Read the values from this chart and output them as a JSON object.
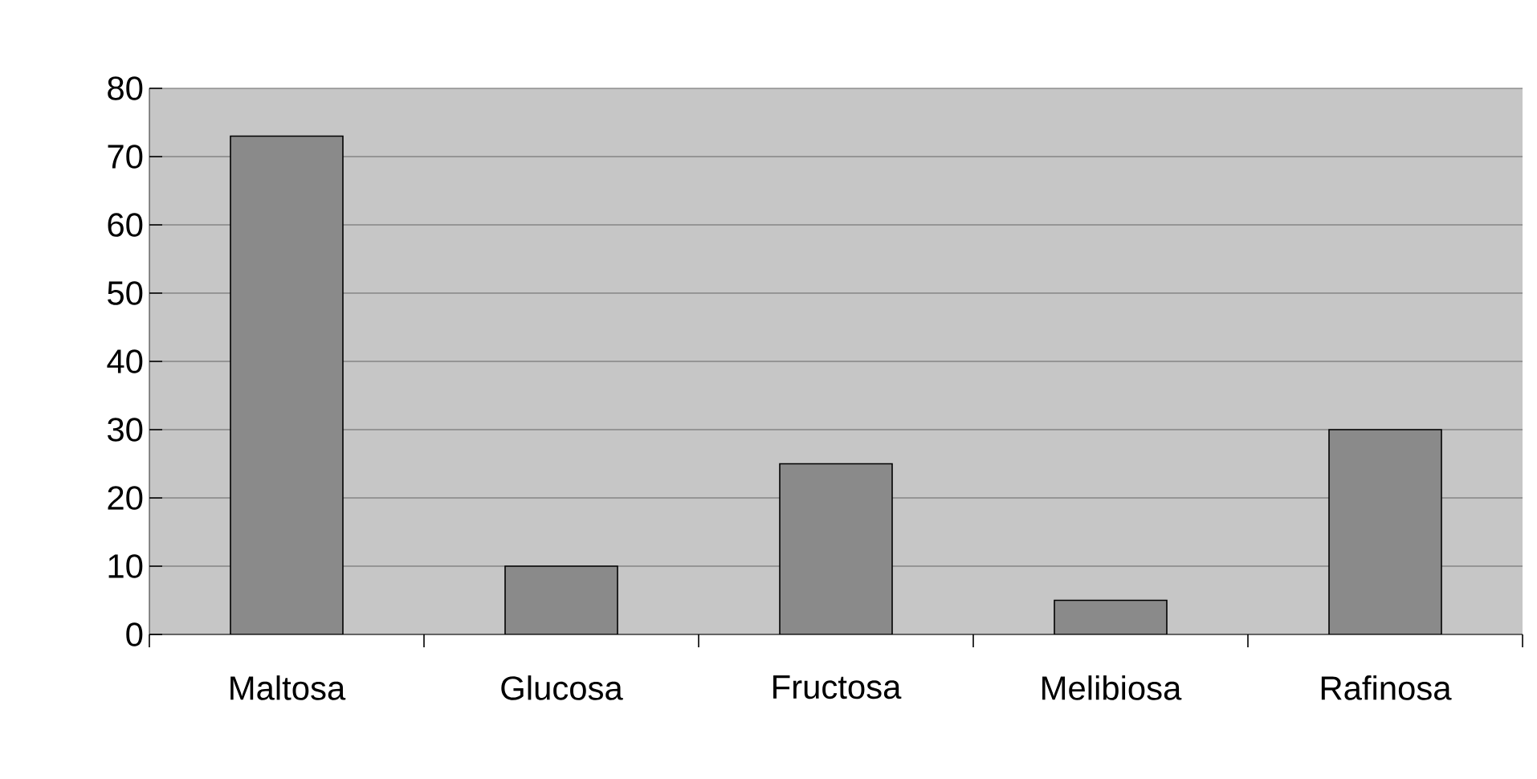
{
  "chart_data": {
    "type": "bar",
    "categories": [
      "Maltosa",
      "Glucosa",
      "Fructosa",
      "Melibiosa",
      "Rafinosa"
    ],
    "values": [
      73,
      10,
      25,
      5,
      30
    ],
    "color": "#8a8a8a",
    "ylim": [
      0,
      80
    ],
    "yticks": [
      0,
      10,
      20,
      30,
      40,
      50,
      60,
      70,
      80
    ],
    "grid": "y"
  }
}
